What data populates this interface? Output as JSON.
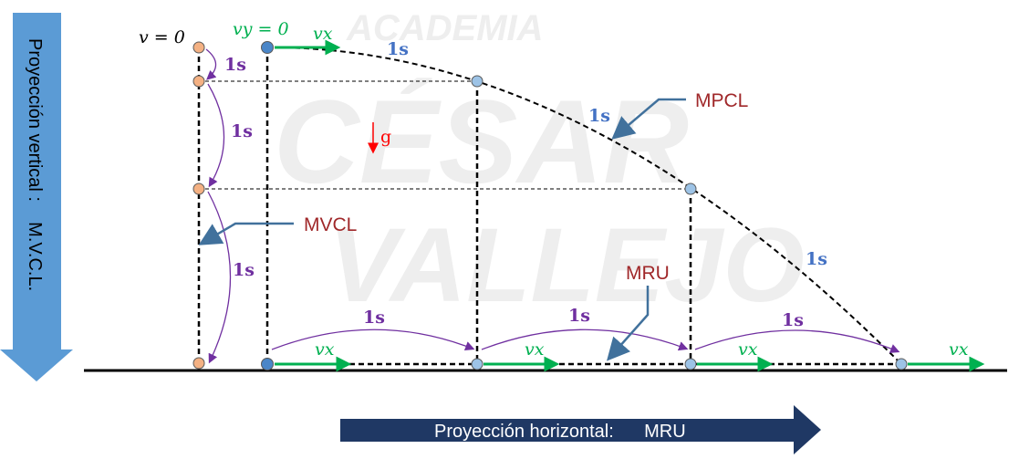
{
  "watermark": {
    "line1": "ACADEMIA",
    "line2": "CÉSAR",
    "line3": "VALLEJO"
  },
  "vertical_banner": {
    "text": "Proyección vertical :    M.V.C.L."
  },
  "horizontal_banner": {
    "text": "Proyección horizontal:      MRU"
  },
  "labels": {
    "v_zero": "v = 0",
    "vy_zero": "vy = 0",
    "vx": "vx",
    "gravity": "g",
    "time_1s": "1s",
    "mpcl": "MPCL",
    "mvcl": "MVCL",
    "mru": "MRU"
  },
  "colors": {
    "purple": "#7030a0",
    "blue_text": "#4472c4",
    "green": "#00b050",
    "red": "#ff0000",
    "dark_red": "#a0282a",
    "banner_blue": "#5b9bd5",
    "banner_navy": "#1f3864",
    "dot_orange": "#f4b183",
    "dot_blue": "#4a86c8",
    "dot_lightblue": "#9dc3e6"
  }
}
